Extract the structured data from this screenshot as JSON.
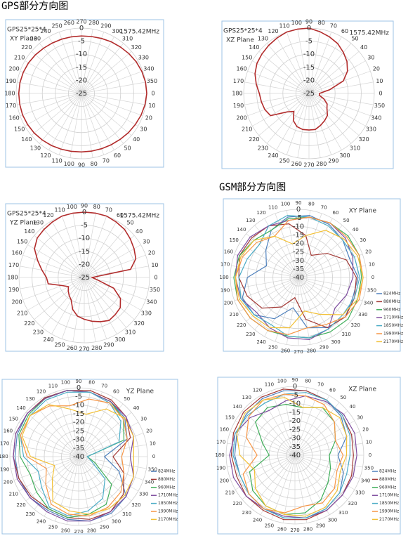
{
  "headers": {
    "gps": "GPS部分方向图",
    "gsm": "GSM部分方向图"
  },
  "chart_data": [
    {
      "type": "polar",
      "title": "GPS25*25*4",
      "subtitle": "XY Plane",
      "annotation": "1575.42MHz",
      "theta_zero": "right",
      "theta_direction": "clockwise",
      "rlim": [
        -25,
        0
      ],
      "rticks": [
        0,
        -5,
        -10,
        -15,
        -20,
        -25
      ],
      "angle_ticks": [
        0,
        10,
        20,
        30,
        40,
        50,
        60,
        70,
        80,
        90,
        100,
        110,
        120,
        130,
        140,
        150,
        160,
        170,
        180,
        190,
        200,
        210,
        220,
        230,
        240,
        250,
        260,
        270,
        280,
        290,
        300,
        310,
        320,
        330,
        340,
        350
      ],
      "theta": [
        0,
        10,
        20,
        30,
        40,
        50,
        60,
        70,
        80,
        90,
        100,
        110,
        120,
        130,
        140,
        150,
        160,
        170,
        180,
        190,
        200,
        210,
        220,
        230,
        240,
        250,
        260,
        270,
        280,
        290,
        300,
        310,
        320,
        330,
        340,
        350
      ],
      "series": [
        {
          "color": "#b22c2c",
          "values": [
            0,
            -0.3,
            -0.7,
            -1.2,
            -1.6,
            -2,
            -2.3,
            -2.5,
            -2.6,
            -2.6,
            -2.5,
            -2.3,
            -2,
            -1.7,
            -1.4,
            -1.2,
            -1,
            -1,
            -1,
            -1.1,
            -1.3,
            -1.6,
            -2,
            -2.4,
            -2.7,
            -2.9,
            -3,
            -3,
            -2.9,
            -2.6,
            -2.2,
            -1.8,
            -1.3,
            -0.8,
            -0.4,
            -0.1
          ]
        }
      ]
    },
    {
      "type": "polar",
      "title": "GPS25*25*4",
      "subtitle": "XZ Plane",
      "annotation": "1575.42MHz",
      "theta_zero": "right",
      "theta_direction": "counterclockwise",
      "rlim": [
        -25,
        0
      ],
      "rticks": [
        0,
        -5,
        -10,
        -15,
        -20,
        -25
      ],
      "angle_ticks": [
        0,
        10,
        20,
        30,
        40,
        50,
        60,
        70,
        80,
        90,
        100,
        110,
        120,
        130,
        140,
        150,
        160,
        170,
        180,
        190,
        200,
        210,
        220,
        230,
        240,
        250,
        260,
        270,
        280,
        290,
        300,
        310,
        320,
        330,
        340,
        350
      ],
      "theta": [
        0,
        10,
        20,
        30,
        40,
        50,
        60,
        70,
        80,
        90,
        100,
        110,
        120,
        130,
        140,
        150,
        160,
        170,
        180,
        190,
        200,
        210,
        220,
        230,
        240,
        250,
        260,
        270,
        280,
        290,
        300,
        310,
        320,
        330,
        340,
        350
      ],
      "series": [
        {
          "color": "#b22c2c",
          "values": [
            -21,
            -17,
            -11,
            -8,
            -6,
            -4.5,
            -3,
            -2,
            -1,
            0,
            0,
            0,
            -0.5,
            -1,
            -1.5,
            -2,
            -3,
            -4.5,
            -6,
            -6.5,
            -7,
            -8,
            -14,
            -16,
            -13,
            -11.5,
            -11,
            -11,
            -11,
            -12,
            -13,
            -14,
            -16,
            -17,
            -19,
            -21
          ]
        }
      ]
    },
    {
      "type": "polar",
      "title": "GPS25*25*4",
      "subtitle": "YZ Plane",
      "annotation": "1575.42MHz",
      "theta_zero": "right",
      "theta_direction": "counterclockwise",
      "rlim": [
        -25,
        0
      ],
      "rticks": [
        0,
        -5,
        -10,
        -15,
        -20,
        -25
      ],
      "angle_ticks": [
        0,
        10,
        20,
        30,
        40,
        50,
        60,
        70,
        80,
        90,
        100,
        110,
        120,
        130,
        140,
        150,
        160,
        170,
        180,
        190,
        200,
        210,
        220,
        230,
        240,
        250,
        260,
        270,
        280,
        290,
        300,
        310,
        320,
        330,
        340,
        350
      ],
      "theta": [
        0,
        10,
        20,
        30,
        40,
        50,
        60,
        70,
        80,
        90,
        100,
        110,
        120,
        130,
        140,
        150,
        160,
        170,
        180,
        190,
        200,
        210,
        220,
        230,
        240,
        250,
        260,
        270,
        280,
        290,
        300,
        310,
        320,
        330,
        340,
        350
      ],
      "series": [
        {
          "color": "#b22c2c",
          "values": [
            -22,
            -7,
            -4,
            -3,
            -2,
            -1,
            -0.5,
            0,
            0,
            0,
            0,
            0,
            -0.5,
            -1,
            -1.5,
            -3,
            -6,
            -8.5,
            -10.5,
            -11,
            -16,
            -18,
            -17,
            -16,
            -15,
            -12,
            -10,
            -9,
            -8,
            -7,
            -6,
            -6.5,
            -7,
            -9,
            -13,
            -20
          ]
        }
      ]
    },
    {
      "type": "polar",
      "title": "XY Plane",
      "theta_zero": "right",
      "theta_direction": "counterclockwise",
      "rlim": [
        -40,
        0
      ],
      "rticks": [
        0,
        -5,
        -10,
        -15,
        -20,
        -25,
        -30,
        -35,
        -40
      ],
      "angle_ticks": [
        0,
        10,
        20,
        30,
        40,
        50,
        60,
        70,
        80,
        90,
        100,
        110,
        120,
        130,
        140,
        150,
        160,
        170,
        180,
        190,
        200,
        210,
        220,
        230,
        240,
        250,
        260,
        270,
        280,
        290,
        300,
        310,
        320,
        330,
        340,
        350
      ],
      "theta": [
        0,
        20,
        40,
        60,
        80,
        100,
        120,
        140,
        160,
        180,
        200,
        220,
        240,
        260,
        280,
        300,
        320,
        340
      ],
      "series": [
        {
          "name": "824MHz",
          "color": "#4f81bd",
          "values": [
            -5,
            -8,
            -6,
            -4,
            -3,
            -4,
            -8,
            -15,
            -20,
            -10,
            -5,
            -6,
            -12,
            -22,
            -10,
            -6,
            -4,
            -6
          ]
        },
        {
          "name": "880MHz",
          "color": "#a33a36",
          "values": [
            -6,
            -10,
            -18,
            -25,
            -15,
            -8,
            -5,
            -4,
            -3,
            -5,
            -8,
            -12,
            -20,
            -28,
            -15,
            -6,
            -4,
            -5
          ]
        },
        {
          "name": "960MHz",
          "color": "#3fae5a",
          "values": [
            -3,
            -2,
            -2,
            -3,
            -4,
            -5,
            -8,
            -6,
            -3,
            -2,
            -2,
            -3,
            -4,
            -5,
            -4,
            -3,
            -2,
            -3
          ]
        },
        {
          "name": "1710MHz",
          "color": "#7d4c9e",
          "values": [
            -8,
            -6,
            -4,
            -3,
            -4,
            -6,
            -5,
            -3,
            -2,
            -3,
            -4,
            -8,
            -6,
            -4,
            -3,
            -5,
            -12,
            -10
          ]
        },
        {
          "name": "1850MHz",
          "color": "#4bacc6",
          "values": [
            -4,
            -5,
            -6,
            -5,
            -4,
            -3,
            -5,
            -10,
            -8,
            -5,
            -4,
            -6,
            -8,
            -5,
            -4,
            -5,
            -6,
            -5
          ]
        },
        {
          "name": "1990MHz",
          "color": "#f79646",
          "values": [
            -2,
            -2,
            -3,
            -3,
            -4,
            -6,
            -12,
            -8,
            -5,
            -3,
            -2,
            -3,
            -4,
            -6,
            -10,
            -8,
            -4,
            -2
          ]
        },
        {
          "name": "2170MHz",
          "color": "#f2c037",
          "values": [
            -2,
            -3,
            -5,
            -8,
            -15,
            -20,
            -12,
            -6,
            -4,
            -3,
            -3,
            -5,
            -6,
            -10,
            -20,
            -15,
            -6,
            -3
          ]
        }
      ]
    },
    {
      "type": "polar",
      "title": "YZ Plane",
      "theta_zero": "right",
      "theta_direction": "counterclockwise",
      "rlim": [
        -40,
        0
      ],
      "rticks": [
        0,
        -5,
        -10,
        -15,
        -20,
        -25,
        -30,
        -35,
        -40
      ],
      "angle_ticks": [
        0,
        10,
        20,
        30,
        40,
        50,
        60,
        70,
        80,
        90,
        100,
        110,
        120,
        130,
        140,
        150,
        160,
        170,
        180,
        190,
        200,
        210,
        220,
        230,
        240,
        250,
        260,
        270,
        280,
        290,
        300,
        310,
        320,
        330,
        340,
        350
      ],
      "theta": [
        0,
        20,
        40,
        60,
        80,
        100,
        120,
        140,
        160,
        180,
        200,
        220,
        240,
        260,
        280,
        300,
        320,
        340
      ],
      "series": [
        {
          "name": "824MHz",
          "color": "#4f81bd",
          "values": [
            -25,
            -10,
            -5,
            -3,
            -2,
            -1,
            -1,
            -1,
            -2,
            -3,
            -3,
            -3,
            -4,
            -3,
            -2,
            -2,
            -4,
            -15
          ]
        },
        {
          "name": "880MHz",
          "color": "#a33a36",
          "values": [
            -20,
            -8,
            -4,
            -2,
            -1,
            -1,
            -0.5,
            -1,
            -1,
            -2,
            -3,
            -4,
            -5,
            -4,
            -3,
            -3,
            -6,
            -12
          ]
        },
        {
          "name": "960MHz",
          "color": "#3fae5a",
          "values": [
            -35,
            -12,
            -6,
            -3,
            -2,
            -1,
            -1,
            -2,
            -3,
            -6,
            -10,
            -8,
            -5,
            -4,
            -6,
            -8,
            -15,
            -30
          ]
        },
        {
          "name": "1710MHz",
          "color": "#7d4c9e",
          "values": [
            -10,
            -6,
            -4,
            -3,
            -2,
            -1,
            -1,
            -1,
            -1,
            -2,
            -2,
            -3,
            -3,
            -2,
            -2,
            -3,
            -4,
            -6
          ]
        },
        {
          "name": "1850MHz",
          "color": "#4bacc6",
          "values": [
            -35,
            -15,
            -8,
            -4,
            -2,
            -2,
            -2,
            -3,
            -4,
            -8,
            -15,
            -12,
            -6,
            -5,
            -8,
            -12,
            -20,
            -32
          ]
        },
        {
          "name": "1990MHz",
          "color": "#f79646",
          "values": [
            -15,
            -10,
            -6,
            -4,
            -6,
            -10,
            -6,
            -3,
            -4,
            -10,
            -20,
            -15,
            -8,
            -6,
            -5,
            -6,
            -8,
            -12
          ]
        },
        {
          "name": "2170MHz",
          "color": "#f2c037",
          "values": [
            -8,
            -6,
            -5,
            -8,
            -15,
            -12,
            -5,
            -3,
            -5,
            -12,
            -25,
            -20,
            -10,
            -8,
            -6,
            -5,
            -5,
            -6
          ]
        }
      ]
    },
    {
      "type": "polar",
      "title": "XZ Plane",
      "theta_zero": "right",
      "theta_direction": "counterclockwise",
      "rlim": [
        -40,
        0
      ],
      "rticks": [
        0,
        -5,
        -10,
        -15,
        -20,
        -25,
        -30,
        -35,
        -40
      ],
      "angle_ticks": [
        0,
        10,
        20,
        30,
        40,
        50,
        60,
        70,
        80,
        90,
        100,
        110,
        120,
        130,
        140,
        150,
        160,
        170,
        180,
        190,
        200,
        210,
        220,
        230,
        240,
        250,
        260,
        270,
        280,
        290,
        300,
        310,
        320,
        330,
        340,
        350
      ],
      "theta": [
        0,
        20,
        40,
        60,
        80,
        100,
        120,
        140,
        160,
        180,
        200,
        220,
        240,
        260,
        280,
        300,
        320,
        340
      ],
      "series": [
        {
          "name": "824MHz",
          "color": "#4f81bd",
          "values": [
            -15,
            -8,
            -5,
            -3,
            -2,
            -2,
            -2,
            -3,
            -4,
            -5,
            -6,
            -5,
            -4,
            -3,
            -3,
            -4,
            -6,
            -10
          ]
        },
        {
          "name": "880MHz",
          "color": "#a33a36",
          "values": [
            -6,
            -5,
            -4,
            -3,
            -2,
            -1,
            -1,
            -1,
            -2,
            -3,
            -4,
            -3,
            -3,
            -2,
            -2,
            -3,
            -4,
            -5
          ]
        },
        {
          "name": "960MHz",
          "color": "#3fae5a",
          "values": [
            -20,
            -15,
            -10,
            -8,
            -12,
            -10,
            -8,
            -10,
            -20,
            -25,
            -12,
            -8,
            -6,
            -5,
            -6,
            -10,
            -15,
            -18
          ]
        },
        {
          "name": "1710MHz",
          "color": "#7d4c9e",
          "values": [
            -4,
            -3,
            -3,
            -4,
            -5,
            -8,
            -10,
            -6,
            -3,
            -2,
            -2,
            -3,
            -4,
            -4,
            -3,
            -3,
            -4,
            -4
          ]
        },
        {
          "name": "1850MHz",
          "color": "#4bacc6",
          "values": [
            -8,
            -6,
            -4,
            -3,
            -3,
            -4,
            -5,
            -4,
            -3,
            -4,
            -6,
            -5,
            -4,
            -3,
            -3,
            -4,
            -6,
            -8
          ]
        },
        {
          "name": "1990MHz",
          "color": "#f79646",
          "values": [
            -12,
            -15,
            -10,
            -6,
            -5,
            -4,
            -3,
            -5,
            -10,
            -18,
            -8,
            -5,
            -4,
            -6,
            -10,
            -8,
            -10,
            -14
          ]
        },
        {
          "name": "2170MHz",
          "color": "#f2c037",
          "values": [
            -10,
            -8,
            -6,
            -8,
            -12,
            -6,
            -3,
            -2,
            -4,
            -8,
            -15,
            -10,
            -6,
            -5,
            -4,
            -5,
            -8,
            -12
          ]
        }
      ]
    }
  ]
}
